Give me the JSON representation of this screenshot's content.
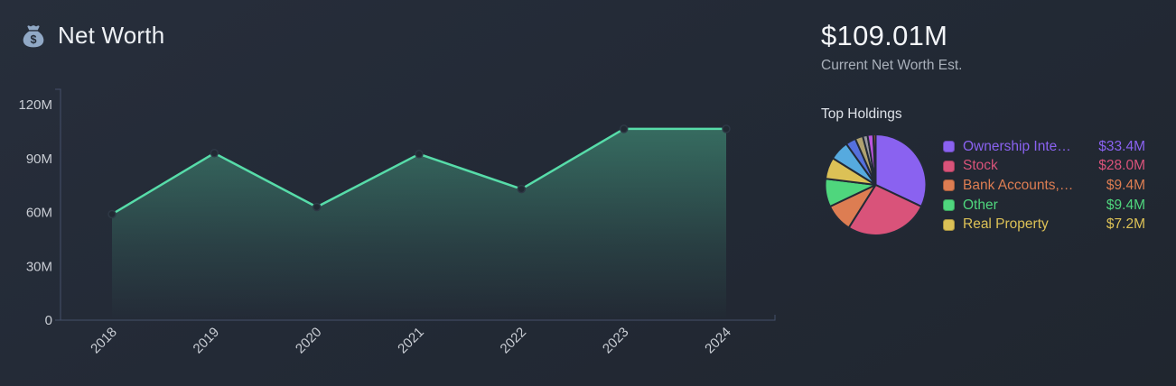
{
  "header": {
    "title": "Net Worth",
    "icon": "money-bag-icon"
  },
  "summary": {
    "value": "$109.01M",
    "caption": "Current Net Worth Est."
  },
  "holdings_section": {
    "title": "Top Holdings"
  },
  "colors": {
    "background": "#232a36",
    "line": "#57dca9",
    "area_top": "rgba(87,220,169,0.42)",
    "area_bottom": "rgba(87,220,169,0)",
    "axis": "#45506a",
    "tick_text": "#c9cdd4",
    "marker_fill": "#212933",
    "marker_stroke": "#2e3845",
    "icon": "#91a9c6"
  },
  "chart_data": [
    {
      "type": "area",
      "title": "Net Worth",
      "x": [
        "2018",
        "2019",
        "2020",
        "2021",
        "2022",
        "2023",
        "2024"
      ],
      "values": [
        59,
        93,
        63,
        92.5,
        73,
        106.5,
        106.5
      ],
      "unit": "M",
      "xlabel": "",
      "ylabel": "",
      "ylim": [
        0,
        128.5
      ],
      "yticks": [
        {
          "value": 0,
          "label": "0"
        },
        {
          "value": 30,
          "label": "30M"
        },
        {
          "value": 60,
          "label": "60M"
        },
        {
          "value": 90,
          "label": "90M"
        },
        {
          "value": 120,
          "label": "120M"
        }
      ],
      "grid": false,
      "legend_position": "none"
    },
    {
      "type": "pie",
      "title": "Top Holdings",
      "start_angle_deg": 0,
      "direction": "clockwise",
      "legend_position": "right",
      "slices": [
        {
          "label": "Ownership Inte…",
          "value": 33.4,
          "display": "$33.4M",
          "color": "#8a62f0",
          "in_legend": true
        },
        {
          "label": "Stock",
          "value": 28.0,
          "display": "$28.0M",
          "color": "#d9537a",
          "in_legend": true
        },
        {
          "label": "Bank Accounts,…",
          "value": 9.4,
          "display": "$9.4M",
          "color": "#dd7d52",
          "in_legend": true
        },
        {
          "label": "Other",
          "value": 9.4,
          "display": "$9.4M",
          "color": "#4fd67d",
          "in_legend": true
        },
        {
          "label": "Real Property",
          "value": 7.2,
          "display": "$7.2M",
          "color": "#dcc156",
          "in_legend": true
        },
        {
          "label": "",
          "value": 6.5,
          "display": "",
          "color": "#56aadf",
          "in_legend": false
        },
        {
          "label": "",
          "value": 3.4,
          "display": "",
          "color": "#5570dd",
          "in_legend": false
        },
        {
          "label": "",
          "value": 2.6,
          "display": "",
          "color": "#b0a270",
          "in_legend": false
        },
        {
          "label": "",
          "value": 1.6,
          "display": "",
          "color": "#9a9aa0",
          "in_legend": false
        },
        {
          "label": "",
          "value": 1.9,
          "display": "",
          "color": "#bb55dd",
          "in_legend": false
        },
        {
          "label": "",
          "value": 0.8,
          "display": "",
          "color": "#e06a40",
          "in_legend": false
        }
      ]
    }
  ]
}
